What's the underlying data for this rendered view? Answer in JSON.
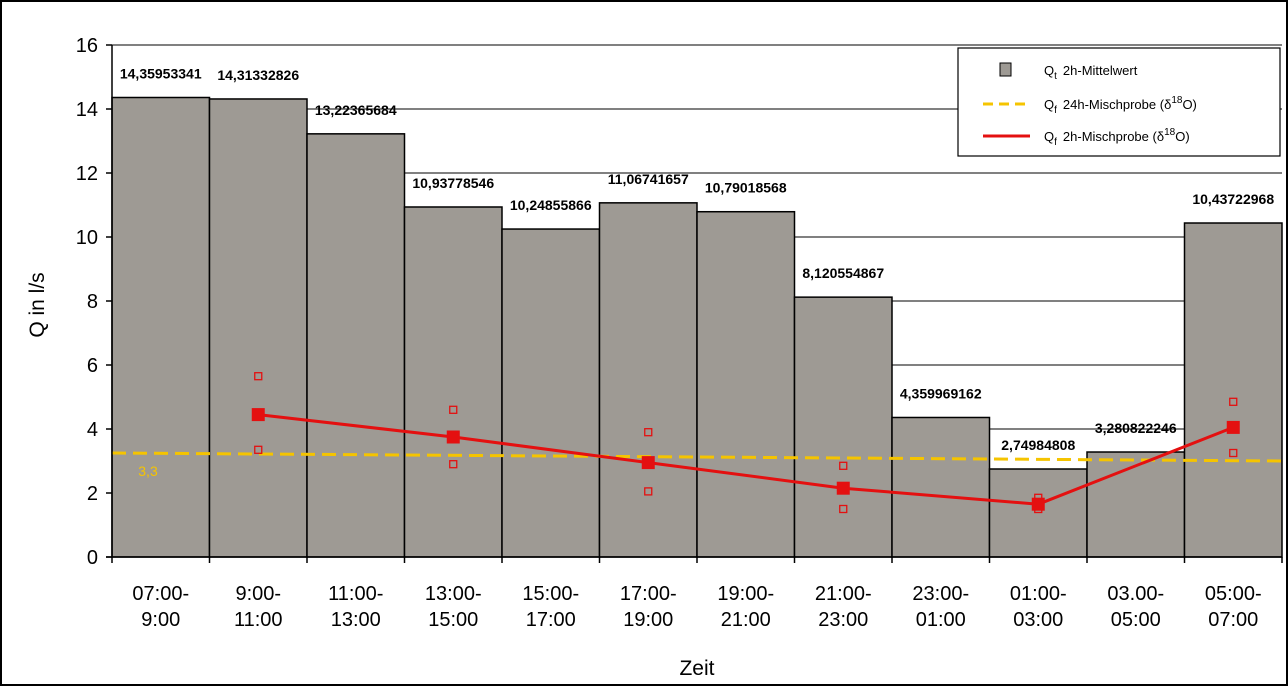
{
  "chart_data": {
    "type": "bar",
    "categories": [
      "07:00-\n9:00",
      "9:00-\n11:00",
      "11:00-\n13:00",
      "13:00-\n15:00",
      "15:00-\n17:00",
      "17:00-\n19:00",
      "19:00-\n21:00",
      "21:00-\n23:00",
      "23:00-\n01:00",
      "01:00-\n03:00",
      "03.00-\n05:00",
      "05:00-\n07:00"
    ],
    "values": [
      14.35953341,
      14.31332826,
      13.22365684,
      10.93778546,
      10.24855866,
      11.06741657,
      10.79018568,
      8.120554867,
      4.359969162,
      2.74984808,
      3.280822246,
      10.43722968
    ],
    "data_labels": [
      "14,35953341",
      "14,31332826",
      "13,22365684",
      "10,93778546",
      "10,24855866",
      "11,06741657",
      "10,79018568",
      "8,120554867",
      "4,359969162",
      "2,74984808",
      "3,280822246",
      "10,43722968"
    ],
    "xlabel": "Zeit",
    "ylabel": "Q in l/s",
    "ylim": [
      0,
      16
    ],
    "yticks": [
      0,
      2,
      4,
      6,
      8,
      10,
      12,
      14,
      16
    ],
    "grid": true,
    "mix24": {
      "y_start": 3.25,
      "y_end": 3.0,
      "label": "3,3",
      "color": "#f5c400"
    },
    "mix2": {
      "category_index": [
        1,
        3,
        5,
        7,
        9,
        11
      ],
      "values": [
        4.45,
        3.75,
        2.95,
        2.15,
        1.65,
        4.05
      ],
      "upper": [
        5.65,
        4.6,
        3.9,
        2.85,
        1.85,
        4.85
      ],
      "lower": [
        3.35,
        2.9,
        2.05,
        1.5,
        1.5,
        3.25
      ],
      "color": "#e41010"
    },
    "bar_color": "#9e9a94",
    "legend": {
      "position": "top-right",
      "items": [
        {
          "symbol": "Q",
          "sub": "t",
          "text": "2h-Mittelwert",
          "sup": "",
          "tail": ""
        },
        {
          "symbol": "Q",
          "sub": "f",
          "text": "24h-Mischprobe (δ",
          "sup": "18",
          "tail": "O)"
        },
        {
          "symbol": "Q",
          "sub": "f",
          "text": "2h-Mischprobe (δ",
          "sup": "18",
          "tail": "O)"
        }
      ]
    }
  }
}
